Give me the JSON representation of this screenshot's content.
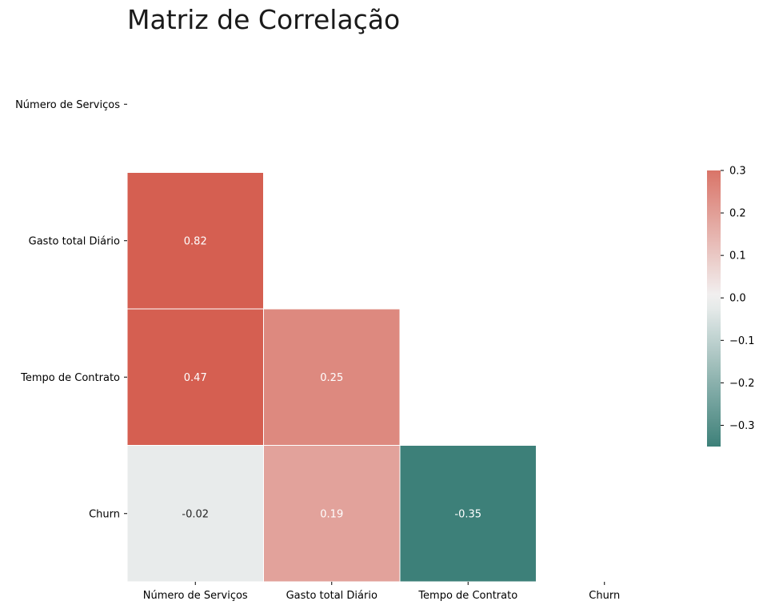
{
  "chart_data": {
    "type": "heatmap",
    "title": "Matriz de Correlação",
    "variables": [
      "Número de Serviços",
      "Gasto total Diário",
      "Tempo de Contrato",
      "Churn"
    ],
    "mask": "upper-triangle-including-diagonal",
    "cells": [
      {
        "row": 1,
        "col": 0,
        "value": 0.82,
        "label": "0.82"
      },
      {
        "row": 2,
        "col": 0,
        "value": 0.47,
        "label": "0.47"
      },
      {
        "row": 2,
        "col": 1,
        "value": 0.25,
        "label": "0.25"
      },
      {
        "row": 3,
        "col": 0,
        "value": -0.02,
        "label": "-0.02"
      },
      {
        "row": 3,
        "col": 1,
        "value": 0.19,
        "label": "0.19"
      },
      {
        "row": 3,
        "col": 2,
        "value": -0.35,
        "label": "-0.35"
      }
    ],
    "colorbar": {
      "vmin": -0.35,
      "vmax": 0.3,
      "ticks": [
        0.3,
        0.2,
        0.1,
        0.0,
        -0.1,
        -0.2,
        -0.3
      ],
      "tick_labels": [
        "0.3",
        "0.2",
        "0.1",
        "0.0",
        "−0.1",
        "−0.2",
        "−0.3"
      ],
      "colors": {
        "negative": "#3d8079",
        "neutral": "#f2f2f2",
        "positive": "#d55f51"
      }
    },
    "grid": false
  }
}
